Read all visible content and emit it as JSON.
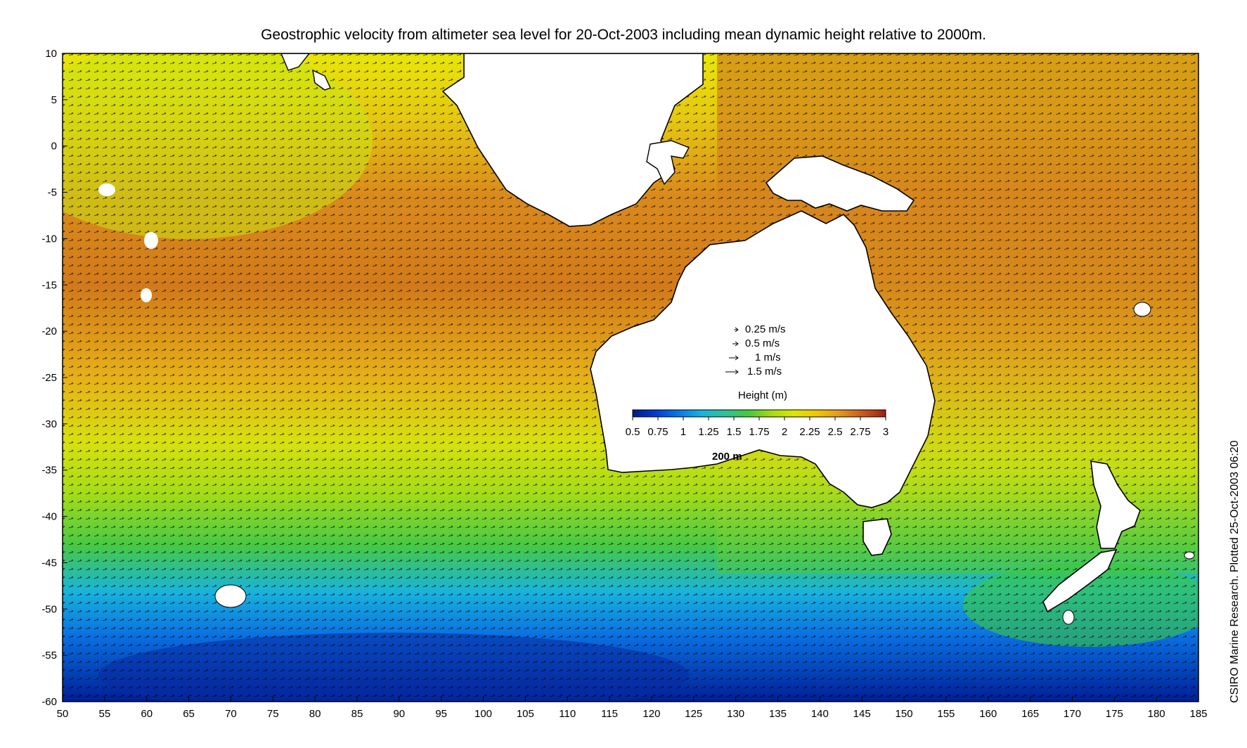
{
  "title": "Geostrophic velocity from altimeter sea level for 20-Oct-2003 including mean dynamic height relative to 2000m.",
  "credit": "CSIRO Marine Research. Plotted 25-Oct-2003 06:20",
  "map": {
    "x_ticks": [
      "50",
      "55",
      "60",
      "65",
      "70",
      "75",
      "80",
      "85",
      "90",
      "95",
      "100",
      "105",
      "110",
      "115",
      "120",
      "125",
      "130",
      "135",
      "140",
      "145",
      "150",
      "155",
      "160",
      "165",
      "170",
      "175",
      "180",
      "185"
    ],
    "y_ticks": [
      "10",
      "5",
      "0",
      "-5",
      "-10",
      "-15",
      "-20",
      "-25",
      "-30",
      "-35",
      "-40",
      "-45",
      "-50",
      "-55",
      "-60"
    ],
    "lon_range": [
      50,
      185
    ],
    "lat_range": [
      -60,
      10
    ],
    "isobath_label": "200 m"
  },
  "velocity_legend": {
    "items": [
      {
        "label": "0.25 m/s",
        "speed": 0.25
      },
      {
        "label": "0.5 m/s",
        "speed": 0.5
      },
      {
        "label": "1 m/s",
        "speed": 1
      },
      {
        "label": "1.5 m/s",
        "speed": 1.5
      }
    ]
  },
  "colorbar": {
    "title": "Height (m)",
    "ticks": [
      "0.5",
      "0.75",
      "1",
      "1.25",
      "1.5",
      "1.75",
      "2",
      "2.25",
      "2.5",
      "2.75",
      "3"
    ],
    "range": [
      0.5,
      3
    ],
    "colors": [
      "#001a8c",
      "#003cd2",
      "#0a78e6",
      "#19b4dc",
      "#2dc39b",
      "#46c83c",
      "#a0dc14",
      "#dce600",
      "#f0c800",
      "#e6961e",
      "#c85a1e",
      "#a01e14"
    ]
  },
  "colors": {
    "land": "#ffffff",
    "coast": "#000000",
    "arrows": "#000000"
  }
}
